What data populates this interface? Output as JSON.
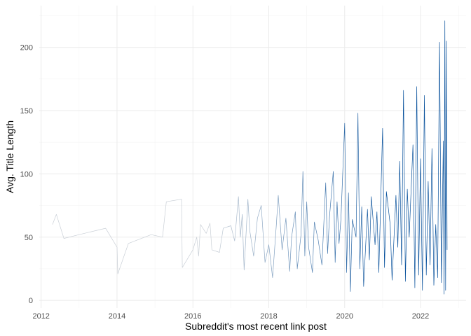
{
  "chart_data": {
    "type": "line",
    "title": "",
    "xlabel": "Subreddit's most recent link post",
    "ylabel": "Avg. Title Length",
    "xlim": [
      2011.95,
      2023.2
    ],
    "ylim": [
      -6,
      233
    ],
    "x_ticks": [
      2012,
      2014,
      2016,
      2018,
      2020,
      2022
    ],
    "y_ticks": [
      0,
      50,
      100,
      150,
      200
    ],
    "grid": true,
    "legend": "none",
    "line_color_light": "#c9cfd6",
    "line_color_dark": "#08519c",
    "series": [
      {
        "points": [
          [
            2012.3,
            60
          ],
          [
            2012.4,
            68
          ],
          [
            2012.6,
            49
          ],
          [
            2013.0,
            52
          ],
          [
            2013.7,
            57
          ],
          [
            2014.0,
            42
          ],
          [
            2014.02,
            21
          ],
          [
            2014.3,
            45
          ],
          [
            2014.9,
            52
          ],
          [
            2015.2,
            50
          ],
          [
            2015.3,
            78
          ],
          [
            2015.7,
            80
          ],
          [
            2015.72,
            26
          ],
          [
            2016.0,
            40
          ],
          [
            2016.1,
            50
          ],
          [
            2016.15,
            35
          ],
          [
            2016.2,
            60
          ],
          [
            2016.35,
            53
          ],
          [
            2016.45,
            61
          ],
          [
            2016.5,
            40
          ],
          [
            2016.7,
            38
          ],
          [
            2016.8,
            57
          ],
          [
            2017.0,
            59
          ],
          [
            2017.1,
            47
          ],
          [
            2017.2,
            82
          ],
          [
            2017.25,
            50
          ],
          [
            2017.3,
            68
          ],
          [
            2017.35,
            24
          ],
          [
            2017.45,
            80
          ],
          [
            2017.5,
            55
          ],
          [
            2017.6,
            35
          ],
          [
            2017.7,
            65
          ],
          [
            2017.8,
            75
          ],
          [
            2017.9,
            30
          ],
          [
            2018.0,
            44
          ],
          [
            2018.1,
            18
          ],
          [
            2018.2,
            60
          ],
          [
            2018.25,
            83
          ],
          [
            2018.35,
            40
          ],
          [
            2018.45,
            65
          ],
          [
            2018.55,
            23
          ],
          [
            2018.6,
            50
          ],
          [
            2018.7,
            70
          ],
          [
            2018.75,
            25
          ],
          [
            2018.85,
            52
          ],
          [
            2018.9,
            102
          ],
          [
            2018.95,
            35
          ],
          [
            2019.0,
            78
          ],
          [
            2019.05,
            42
          ],
          [
            2019.15,
            22
          ],
          [
            2019.2,
            62
          ],
          [
            2019.3,
            48
          ],
          [
            2019.4,
            28
          ],
          [
            2019.5,
            93
          ],
          [
            2019.55,
            37
          ],
          [
            2019.6,
            66
          ],
          [
            2019.7,
            102
          ],
          [
            2019.75,
            30
          ],
          [
            2019.8,
            78
          ],
          [
            2019.85,
            45
          ],
          [
            2019.9,
            64
          ],
          [
            2020.0,
            140
          ],
          [
            2020.05,
            22
          ],
          [
            2020.1,
            85
          ],
          [
            2020.15,
            7
          ],
          [
            2020.2,
            64
          ],
          [
            2020.3,
            50
          ],
          [
            2020.35,
            148
          ],
          [
            2020.4,
            25
          ],
          [
            2020.45,
            74
          ],
          [
            2020.5,
            11
          ],
          [
            2020.6,
            72
          ],
          [
            2020.65,
            32
          ],
          [
            2020.7,
            82
          ],
          [
            2020.8,
            44
          ],
          [
            2020.85,
            70
          ],
          [
            2020.9,
            22
          ],
          [
            2021.0,
            136
          ],
          [
            2021.05,
            26
          ],
          [
            2021.1,
            86
          ],
          [
            2021.2,
            60
          ],
          [
            2021.25,
            16
          ],
          [
            2021.35,
            83
          ],
          [
            2021.4,
            42
          ],
          [
            2021.45,
            110
          ],
          [
            2021.5,
            28
          ],
          [
            2021.55,
            166
          ],
          [
            2021.6,
            15
          ],
          [
            2021.65,
            88
          ],
          [
            2021.7,
            50
          ],
          [
            2021.8,
            123
          ],
          [
            2021.85,
            10
          ],
          [
            2021.9,
            169
          ],
          [
            2021.95,
            20
          ],
          [
            2022.0,
            112
          ],
          [
            2022.05,
            8
          ],
          [
            2022.1,
            162
          ],
          [
            2022.15,
            20
          ],
          [
            2022.2,
            94
          ],
          [
            2022.25,
            28
          ],
          [
            2022.3,
            120
          ],
          [
            2022.35,
            12
          ],
          [
            2022.4,
            60
          ],
          [
            2022.45,
            18
          ],
          [
            2022.5,
            204
          ],
          [
            2022.55,
            14
          ],
          [
            2022.6,
            126
          ],
          [
            2022.62,
            5
          ],
          [
            2022.64,
            221
          ],
          [
            2022.66,
            8
          ],
          [
            2022.68,
            205
          ],
          [
            2022.7,
            40
          ]
        ]
      }
    ]
  }
}
